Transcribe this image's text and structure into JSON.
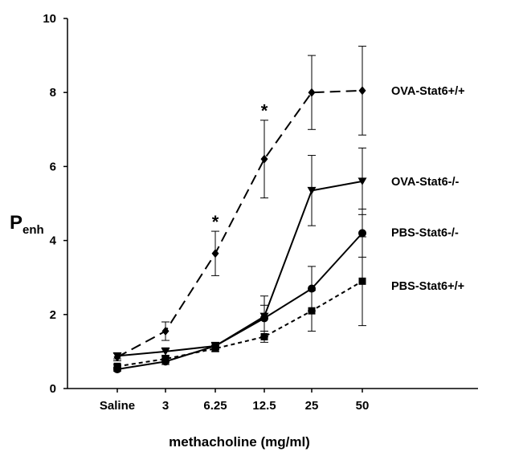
{
  "chart_data": {
    "type": "line",
    "categories": [
      "Saline",
      "3",
      "6.25",
      "12.5",
      "25",
      "50"
    ],
    "xlabel": "methacholine (mg/ml)",
    "ylabel": {
      "main": "P",
      "subscript": "enh"
    },
    "ylim": [
      0,
      10
    ],
    "yticks": [
      0,
      2,
      4,
      6,
      8,
      10
    ],
    "grid": false,
    "legend": "labels at line ends (right)",
    "series": [
      {
        "name": "OVA-Stat6+/+",
        "marker": "diamond",
        "line_style": "long-dash",
        "values": [
          0.85,
          1.55,
          3.65,
          6.2,
          8.0,
          8.05
        ],
        "errors": [
          0.1,
          0.25,
          0.6,
          1.05,
          1.0,
          1.2
        ]
      },
      {
        "name": "OVA-Stat6-/-",
        "marker": "triangle-down",
        "line_style": "solid",
        "values": [
          0.88,
          1.0,
          1.15,
          1.95,
          5.35,
          5.6
        ],
        "errors": [
          0.08,
          0.1,
          0.1,
          0.55,
          0.95,
          0.9
        ]
      },
      {
        "name": "PBS-Stat6-/-",
        "marker": "circle",
        "line_style": "solid",
        "values": [
          0.52,
          0.73,
          1.15,
          1.9,
          2.7,
          4.2
        ],
        "errors": [
          0.05,
          0.08,
          0.08,
          0.35,
          0.6,
          0.65
        ]
      },
      {
        "name": "PBS-Stat6+/+",
        "marker": "square",
        "line_style": "short-dash",
        "values": [
          0.6,
          0.8,
          1.08,
          1.4,
          2.1,
          2.9
        ],
        "errors": [
          0.05,
          0.06,
          0.08,
          0.15,
          0.55,
          1.2
        ]
      }
    ],
    "annotations": [
      {
        "text": "*",
        "category": "6.25",
        "y": 4.6
      },
      {
        "text": "*",
        "category": "12.5",
        "y": 7.6
      }
    ]
  }
}
